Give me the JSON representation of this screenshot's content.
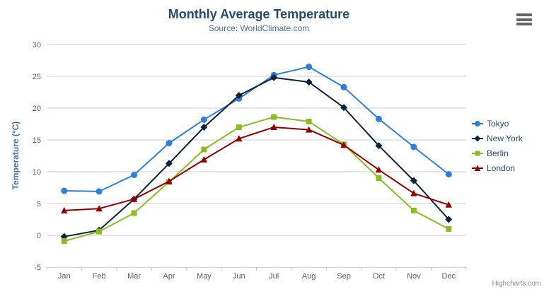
{
  "chart_data": {
    "type": "line",
    "title": "Monthly Average Temperature",
    "subtitle": "Source: WorldClimate.com",
    "xlabel": "",
    "ylabel": "Temperature (°C)",
    "categories": [
      "Jan",
      "Feb",
      "Mar",
      "Apr",
      "May",
      "Jun",
      "Jul",
      "Aug",
      "Sep",
      "Oct",
      "Nov",
      "Dec"
    ],
    "ylim": [
      -5,
      30
    ],
    "ytick_interval": 5,
    "grid": true,
    "legend_position": "right",
    "series": [
      {
        "name": "Tokyo",
        "color": "#2f7ed8",
        "marker": "circle",
        "values": [
          7.0,
          6.9,
          9.5,
          14.5,
          18.2,
          21.5,
          25.2,
          26.5,
          23.3,
          18.3,
          13.9,
          9.6
        ]
      },
      {
        "name": "New York",
        "color": "#0d233a",
        "marker": "diamond",
        "values": [
          -0.2,
          0.8,
          5.7,
          11.3,
          17.0,
          22.0,
          24.8,
          24.1,
          20.1,
          14.1,
          8.6,
          2.5
        ]
      },
      {
        "name": "Berlin",
        "color": "#8bbc21",
        "marker": "square",
        "values": [
          -0.9,
          0.6,
          3.5,
          8.4,
          13.5,
          17.0,
          18.6,
          17.9,
          14.3,
          9.0,
          3.9,
          1.0
        ]
      },
      {
        "name": "London",
        "color": "#910000",
        "marker": "triangle",
        "values": [
          3.9,
          4.2,
          5.7,
          8.5,
          11.9,
          15.2,
          17.0,
          16.6,
          14.2,
          10.3,
          6.6,
          4.8
        ]
      }
    ],
    "credits": "Highcharts.com",
    "axis_colors": {
      "grid": "#cccccc",
      "axis_line": "#c0d0e0",
      "labels": "#606060"
    },
    "export_icon": "hamburger-icon"
  }
}
